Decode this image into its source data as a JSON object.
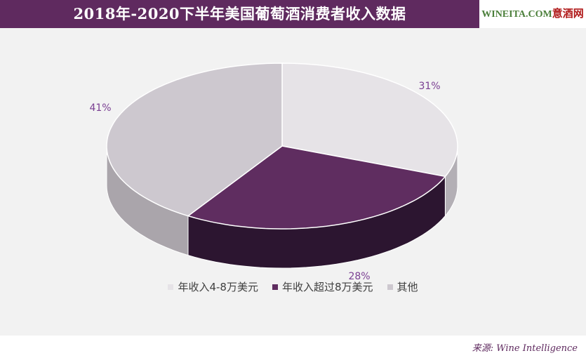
{
  "header": {
    "title": "2018年-2020下半年美国葡萄酒消费者收入数据",
    "logo_prefix": "WINEITA.COM",
    "logo_cn": "意酒网"
  },
  "footer": {
    "source": "来源: Wine Intelligence"
  },
  "colors": {
    "title_bg": "#5f2a5f",
    "label": "#7a3f92",
    "slice_4_8": "#e6e3e7",
    "slice_over8": "#5f2d60",
    "slice_other": "#cdc8cf"
  },
  "chart_data": {
    "type": "pie",
    "style": "3d",
    "title": "2018年-2020下半年美国葡萄酒消费者收入数据",
    "legend_position": "bottom",
    "slices": [
      {
        "label": "年收入4-8万美元",
        "value": 31,
        "display": "31%"
      },
      {
        "label": "年收入超过8万美元",
        "value": 28,
        "display": "28%"
      },
      {
        "label": "其他",
        "value": 41,
        "display": "41%"
      }
    ]
  }
}
